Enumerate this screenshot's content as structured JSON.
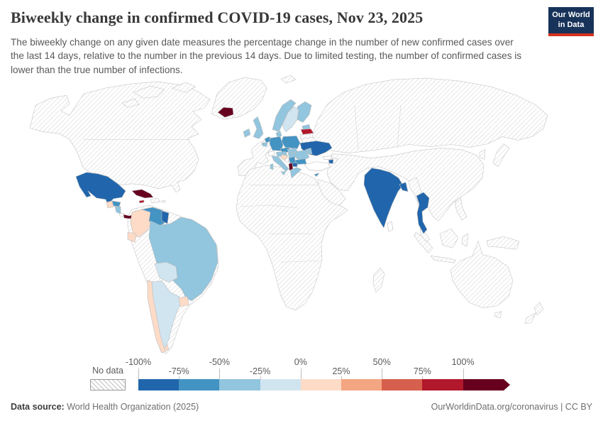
{
  "header": {
    "title": "Biweekly change in confirmed COVID-19 cases, Nov 23, 2025",
    "logo_line1": "Our World",
    "logo_line2": "in Data",
    "logo_bg": "#18335a",
    "logo_stripe": "#d4321f"
  },
  "subtitle": "The biweekly change on any given date measures the percentage change in the number of new confirmed cases over the last 14 days, relative to the number in the previous 14 days. Due to limited testing, the number of confirmed cases is lower than the true number of infections.",
  "legend": {
    "no_data_label": "No data",
    "tick_labels": [
      "-100%",
      "-75%",
      "-50%",
      "-25%",
      "0%",
      "25%",
      "50%",
      "75%",
      "100%"
    ],
    "bin_colors": [
      "#2166ac",
      "#4393c3",
      "#92c5de",
      "#d1e5f0",
      "#fddbc7",
      "#f4a582",
      "#d6604d",
      "#b2182b",
      "#67001f"
    ]
  },
  "chart_data": {
    "type": "heatmap",
    "title": "Biweekly change in confirmed COVID-19 cases, Nov 23, 2025",
    "unit": "%",
    "scale_bins": [
      "-100%",
      "-75%",
      "-50%",
      "-25%",
      "0%",
      "25%",
      "50%",
      "75%",
      "100%"
    ],
    "legend_position": "bottom",
    "note": "choropleth world map; values are percent change bins per country"
  },
  "map": {
    "regions": [
      {
        "id": "north-america",
        "name": "United States / Canada / Alaska",
        "fill": "no-data"
      },
      {
        "id": "arctic-1",
        "name": "Canadian Arctic islands",
        "fill": "no-data"
      },
      {
        "id": "arctic-2",
        "name": "Canadian Arctic islands",
        "fill": "no-data"
      },
      {
        "id": "arctic-3",
        "name": "Canadian Arctic islands",
        "fill": "no-data"
      },
      {
        "id": "greenland",
        "name": "Greenland",
        "fill": "no-data"
      },
      {
        "id": "svalbard",
        "name": "Svalbard",
        "fill": "no-data"
      },
      {
        "id": "iberia-france",
        "name": "France / Spain / Portugal",
        "fill": "no-data"
      },
      {
        "id": "russia",
        "name": "Russia / Kazakhstan",
        "fill": "no-data"
      },
      {
        "id": "central-asia",
        "name": "Middle East / Central Asia / China",
        "fill": "no-data"
      },
      {
        "id": "arabia",
        "name": "Arabian Peninsula",
        "fill": "no-data"
      },
      {
        "id": "africa",
        "name": "Africa",
        "fill": "no-data"
      },
      {
        "id": "madagascar",
        "name": "Madagascar",
        "fill": "no-data"
      },
      {
        "id": "korea",
        "name": "South Korea",
        "fill": "no-data"
      },
      {
        "id": "japan",
        "name": "Japan",
        "fill": "no-data"
      },
      {
        "id": "sumatra",
        "name": "Indonesia (Sumatra)",
        "fill": "no-data"
      },
      {
        "id": "java",
        "name": "Indonesia (Java)",
        "fill": "no-data"
      },
      {
        "id": "borneo",
        "name": "Borneo",
        "fill": "no-data"
      },
      {
        "id": "sulawesi",
        "name": "Sulawesi",
        "fill": "no-data"
      },
      {
        "id": "new-guinea",
        "name": "New Guinea",
        "fill": "no-data"
      },
      {
        "id": "philippines",
        "name": "Philippines",
        "fill": "no-data"
      },
      {
        "id": "australia",
        "name": "Australia",
        "fill": "no-data"
      },
      {
        "id": "tasmania",
        "name": "Tasmania",
        "fill": "no-data"
      },
      {
        "id": "nz-north",
        "name": "New Zealand (North Island)",
        "fill": "no-data"
      },
      {
        "id": "nz-south",
        "name": "New Zealand (South Island)",
        "fill": "no-data"
      },
      {
        "id": "south-america-base",
        "name": "Peru / Paraguay / Suriname / French Guiana",
        "fill": "no-data"
      },
      {
        "id": "hispaniola",
        "name": "Haiti / Dominican Republic",
        "fill": "no-data"
      },
      {
        "id": "puerto-rico",
        "name": "Puerto Rico",
        "fill": "no-data"
      },
      {
        "id": "lithuania",
        "name": "Lithuania",
        "fill": "no-data"
      },
      {
        "id": "belarus",
        "name": "Belarus",
        "fill": "no-data"
      },
      {
        "id": "myanmar",
        "name": "Myanmar",
        "fill": "no-data"
      },
      {
        "id": "malaysia",
        "name": "Malaysia",
        "fill": "no-data"
      },
      {
        "id": "turkey",
        "name": "Turkey",
        "fill": "#ffffff"
      },
      {
        "id": "georgia",
        "name": "Georgia",
        "fill": "#ffffff"
      },
      {
        "id": "azerbaijan",
        "name": "Azerbaijan",
        "fill": "#ffffff"
      },
      {
        "id": "switzerland",
        "name": "Switzerland",
        "fill": "#ffffff"
      },
      {
        "id": "bosnia",
        "name": "Bosnia and Herzegovina",
        "fill": "#ffffff"
      },
      {
        "id": "costa-rica",
        "name": "Costa Rica",
        "fill": "#ffffff"
      },
      {
        "id": "sri-lanka",
        "name": "Sri Lanka",
        "fill": "#ffffff"
      },
      {
        "id": "mexico",
        "name": "Mexico",
        "fill": "#2166ac"
      },
      {
        "id": "guatemala",
        "name": "Guatemala",
        "fill": "#fddbc7"
      },
      {
        "id": "honduras",
        "name": "Honduras",
        "fill": "#4393c3"
      },
      {
        "id": "nicaragua",
        "name": "Nicaragua",
        "fill": "#92c5de"
      },
      {
        "id": "panama",
        "name": "Panama",
        "fill": "#67001f"
      },
      {
        "id": "cuba",
        "name": "Cuba",
        "fill": "#67001f"
      },
      {
        "id": "jamaica",
        "name": "Jamaica",
        "fill": "#b2182b"
      },
      {
        "id": "colombia",
        "name": "Colombia",
        "fill": "#fddbc7"
      },
      {
        "id": "venezuela",
        "name": "Venezuela",
        "fill": "#4393c3"
      },
      {
        "id": "guyana",
        "name": "Guyana",
        "fill": "#2166ac"
      },
      {
        "id": "ecuador",
        "name": "Ecuador",
        "fill": "#fddbc7"
      },
      {
        "id": "brazil",
        "name": "Brazil",
        "fill": "#92c5de"
      },
      {
        "id": "bolivia",
        "name": "Bolivia",
        "fill": "#d1e5f0"
      },
      {
        "id": "chile",
        "name": "Chile",
        "fill": "#fddbc7"
      },
      {
        "id": "argentina",
        "name": "Argentina",
        "fill": "#d1e5f0"
      },
      {
        "id": "uruguay",
        "name": "Uruguay",
        "fill": "#fddbc7"
      },
      {
        "id": "iceland",
        "name": "Iceland",
        "fill": "#67001f"
      },
      {
        "id": "ireland",
        "name": "Ireland",
        "fill": "#92c5de"
      },
      {
        "id": "united-kingdom",
        "name": "United Kingdom",
        "fill": "#92c5de"
      },
      {
        "id": "norway",
        "name": "Norway",
        "fill": "#92c5de"
      },
      {
        "id": "sweden",
        "name": "Sweden",
        "fill": "#d1e5f0"
      },
      {
        "id": "finland",
        "name": "Finland",
        "fill": "#92c5de"
      },
      {
        "id": "denmark",
        "name": "Denmark",
        "fill": "#92c5de"
      },
      {
        "id": "estonia",
        "name": "Estonia",
        "fill": "#92c5de"
      },
      {
        "id": "latvia",
        "name": "Latvia",
        "fill": "#b2182b"
      },
      {
        "id": "netherlands",
        "name": "Netherlands",
        "fill": "#4393c3"
      },
      {
        "id": "belgium",
        "name": "Belgium",
        "fill": "#92c5de"
      },
      {
        "id": "germany",
        "name": "Germany",
        "fill": "#4393c3"
      },
      {
        "id": "poland",
        "name": "Poland",
        "fill": "#4393c3"
      },
      {
        "id": "czechia",
        "name": "Czechia",
        "fill": "#4393c3"
      },
      {
        "id": "slovakia",
        "name": "Slovakia",
        "fill": "#92c5de"
      },
      {
        "id": "austria",
        "name": "Austria",
        "fill": "#92c5de"
      },
      {
        "id": "hungary",
        "name": "Hungary",
        "fill": "#92c5de"
      },
      {
        "id": "ukraine",
        "name": "Ukraine",
        "fill": "#2166ac"
      },
      {
        "id": "moldova",
        "name": "Moldova",
        "fill": "#92c5de"
      },
      {
        "id": "romania",
        "name": "Romania",
        "fill": "#92c5de"
      },
      {
        "id": "serbia",
        "name": "Serbia",
        "fill": "#4393c3"
      },
      {
        "id": "croatia",
        "name": "Croatia",
        "fill": "#fddbc7"
      },
      {
        "id": "bulgaria",
        "name": "Bulgaria",
        "fill": "#4393c3"
      },
      {
        "id": "albania",
        "name": "Albania",
        "fill": "#67001f"
      },
      {
        "id": "north-macedonia",
        "name": "North Macedonia",
        "fill": "#2166ac"
      },
      {
        "id": "greece",
        "name": "Greece",
        "fill": "#92c5de"
      },
      {
        "id": "italy",
        "name": "Italy",
        "fill": "#92c5de"
      },
      {
        "id": "cyprus",
        "name": "Cyprus",
        "fill": "#4393c3"
      },
      {
        "id": "armenia",
        "name": "Armenia",
        "fill": "#2166ac"
      },
      {
        "id": "india",
        "name": "India",
        "fill": "#2166ac"
      },
      {
        "id": "bangladesh",
        "name": "Bangladesh",
        "fill": "#2166ac"
      },
      {
        "id": "thailand",
        "name": "Thailand",
        "fill": "#2166ac"
      }
    ]
  },
  "footer": {
    "source_label": "Data source:",
    "source_value": " World Health Organization (2025)",
    "right_text": "OurWorldinData.org/coronavirus | CC BY"
  }
}
